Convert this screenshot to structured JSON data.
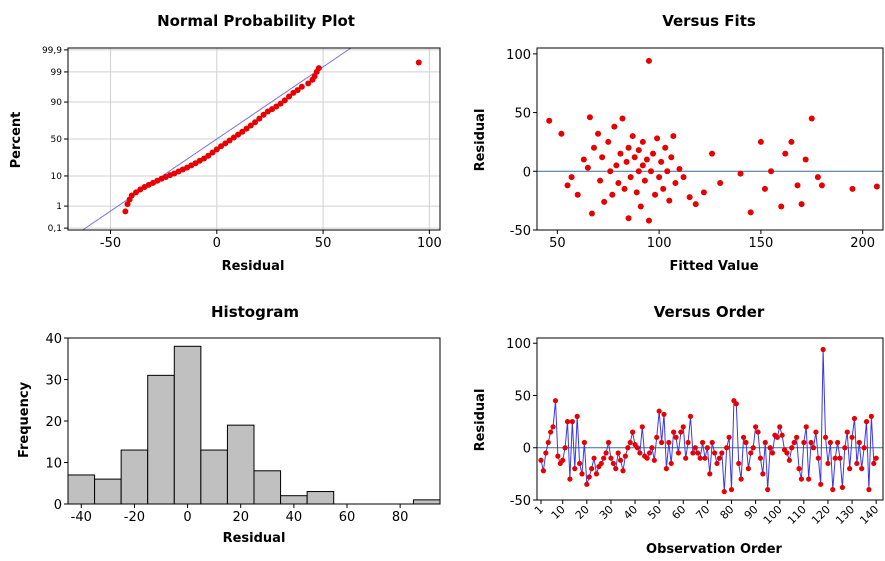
{
  "charts": [
    {
      "id": "npp",
      "title": "Normal Probability Plot",
      "type": "scatter",
      "xlabel": "Residual",
      "ylabel": "Percent",
      "xlim": [
        -70,
        105
      ],
      "xticks": [
        -50,
        0,
        50,
        100
      ],
      "xtick_labels": [
        "-50",
        "0",
        "50",
        "100"
      ],
      "yticks": [
        0.1,
        1,
        10,
        50,
        90,
        99,
        99.9
      ],
      "ytick_labels": [
        "0,1",
        "1",
        "10",
        "50",
        "90",
        "99",
        "99,9"
      ],
      "y_scale": "normal-probability",
      "fit_line": {
        "mean": 0,
        "sd": 20
      },
      "points": [
        [
          -43,
          0.6
        ],
        [
          -42,
          1.2
        ],
        [
          -41,
          1.8
        ],
        [
          -40,
          2.5
        ],
        [
          -38,
          3.2
        ],
        [
          -36,
          4.0
        ],
        [
          -34,
          4.8
        ],
        [
          -32,
          5.6
        ],
        [
          -30,
          6.4
        ],
        [
          -28,
          7.4
        ],
        [
          -26,
          8.4
        ],
        [
          -24,
          9.4
        ],
        [
          -22,
          10.5
        ],
        [
          -20,
          11.6
        ],
        [
          -18,
          13.0
        ],
        [
          -16,
          14.5
        ],
        [
          -14,
          16.0
        ],
        [
          -12,
          18.0
        ],
        [
          -10,
          20.0
        ],
        [
          -8,
          22.5
        ],
        [
          -6,
          25.0
        ],
        [
          -4,
          28.0
        ],
        [
          -2,
          32.0
        ],
        [
          0,
          36.0
        ],
        [
          2,
          40.0
        ],
        [
          4,
          44.0
        ],
        [
          6,
          48.0
        ],
        [
          8,
          52.0
        ],
        [
          10,
          56.0
        ],
        [
          12,
          60.0
        ],
        [
          14,
          64.0
        ],
        [
          16,
          68.0
        ],
        [
          18,
          72.0
        ],
        [
          20,
          76.0
        ],
        [
          22,
          80.0
        ],
        [
          24,
          83.0
        ],
        [
          26,
          85.0
        ],
        [
          28,
          87.0
        ],
        [
          30,
          89.0
        ],
        [
          32,
          91.0
        ],
        [
          34,
          93.0
        ],
        [
          36,
          94.5
        ],
        [
          38,
          95.5
        ],
        [
          40,
          96.5
        ],
        [
          43,
          97.3
        ],
        [
          45,
          98.0
        ],
        [
          46,
          98.5
        ],
        [
          47,
          99.0
        ],
        [
          48,
          99.3
        ],
        [
          95,
          99.6
        ]
      ]
    },
    {
      "id": "fits",
      "title": "Versus Fits",
      "type": "scatter",
      "xlabel": "Fitted Value",
      "ylabel": "Residual",
      "xlim": [
        40,
        210
      ],
      "ylim": [
        -50,
        105
      ],
      "xticks": [
        50,
        100,
        150,
        200
      ],
      "xtick_labels": [
        "50",
        "100",
        "150",
        "200"
      ],
      "yticks": [
        -50,
        0,
        50,
        100
      ],
      "ytick_labels": [
        "-50",
        "0",
        "50",
        "100"
      ],
      "ref_y": 0,
      "points": [
        [
          46,
          43
        ],
        [
          52,
          32
        ],
        [
          55,
          -12
        ],
        [
          57,
          -5
        ],
        [
          60,
          -20
        ],
        [
          63,
          10
        ],
        [
          65,
          3
        ],
        [
          66,
          46
        ],
        [
          67,
          -36
        ],
        [
          68,
          20
        ],
        [
          70,
          32
        ],
        [
          71,
          -8
        ],
        [
          72,
          12
        ],
        [
          73,
          -26
        ],
        [
          75,
          25
        ],
        [
          76,
          0
        ],
        [
          77,
          -20
        ],
        [
          78,
          38
        ],
        [
          79,
          5
        ],
        [
          80,
          -10
        ],
        [
          81,
          15
        ],
        [
          82,
          45
        ],
        [
          83,
          -15
        ],
        [
          84,
          8
        ],
        [
          85,
          20
        ],
        [
          85,
          -40
        ],
        [
          86,
          -5
        ],
        [
          87,
          30
        ],
        [
          88,
          12
        ],
        [
          89,
          -18
        ],
        [
          90,
          0
        ],
        [
          90,
          18
        ],
        [
          91,
          -30
        ],
        [
          92,
          5
        ],
        [
          92,
          25
        ],
        [
          93,
          -8
        ],
        [
          94,
          10
        ],
        [
          95,
          -42
        ],
        [
          95,
          94
        ],
        [
          96,
          0
        ],
        [
          97,
          15
        ],
        [
          98,
          -20
        ],
        [
          99,
          28
        ],
        [
          100,
          -5
        ],
        [
          101,
          8
        ],
        [
          102,
          -15
        ],
        [
          103,
          20
        ],
        [
          104,
          0
        ],
        [
          105,
          -25
        ],
        [
          106,
          12
        ],
        [
          107,
          30
        ],
        [
          108,
          -10
        ],
        [
          110,
          2
        ],
        [
          112,
          -5
        ],
        [
          115,
          -22
        ],
        [
          118,
          -28
        ],
        [
          122,
          -18
        ],
        [
          126,
          15
        ],
        [
          130,
          -10
        ],
        [
          140,
          -2
        ],
        [
          145,
          -35
        ],
        [
          150,
          25
        ],
        [
          152,
          -15
        ],
        [
          155,
          0
        ],
        [
          160,
          -30
        ],
        [
          162,
          15
        ],
        [
          165,
          25
        ],
        [
          168,
          -12
        ],
        [
          170,
          -28
        ],
        [
          172,
          10
        ],
        [
          175,
          45
        ],
        [
          178,
          -5
        ],
        [
          180,
          -12
        ],
        [
          195,
          -15
        ],
        [
          207,
          -13
        ]
      ]
    },
    {
      "id": "hist",
      "title": "Histogram",
      "type": "bar",
      "xlabel": "Residual",
      "ylabel": "Frequency",
      "xlim": [
        -45,
        95
      ],
      "ylim": [
        0,
        40
      ],
      "xticks": [
        -40,
        -20,
        0,
        20,
        40,
        60,
        80
      ],
      "xtick_labels": [
        "-40",
        "-20",
        "0",
        "20",
        "40",
        "60",
        "80"
      ],
      "yticks": [
        0,
        10,
        20,
        30,
        40
      ],
      "ytick_labels": [
        "0",
        "10",
        "20",
        "30",
        "40"
      ],
      "bin_width": 10,
      "bin_centers": [
        -40,
        -30,
        -20,
        -10,
        0,
        10,
        20,
        30,
        40,
        50,
        60,
        70,
        80,
        90
      ],
      "values": [
        7,
        6,
        13,
        31,
        38,
        13,
        19,
        8,
        2,
        3,
        0,
        0,
        0,
        1
      ]
    },
    {
      "id": "order",
      "title": "Versus Order",
      "type": "line",
      "xlabel": "Observation Order",
      "ylabel": "Residual",
      "xlim": [
        1,
        142
      ],
      "ylim": [
        -50,
        105
      ],
      "xticks": [
        1,
        10,
        20,
        30,
        40,
        50,
        60,
        70,
        80,
        90,
        100,
        110,
        120,
        130,
        140
      ],
      "xtick_labels": [
        "1",
        "10",
        "20",
        "30",
        "40",
        "50",
        "60",
        "70",
        "80",
        "90",
        "100",
        "110",
        "120",
        "130",
        "140"
      ],
      "yticks": [
        -50,
        0,
        50,
        100
      ],
      "ytick_labels": [
        "-50",
        "0",
        "50",
        "100"
      ],
      "ref_y": 0,
      "values": [
        -12,
        -22,
        -5,
        5,
        15,
        20,
        45,
        -8,
        -15,
        -12,
        0,
        25,
        -30,
        25,
        -20,
        30,
        -15,
        -25,
        5,
        -35,
        -28,
        -20,
        -10,
        -25,
        -18,
        -15,
        -10,
        -5,
        5,
        -10,
        -15,
        -20,
        -5,
        -12,
        -22,
        -8,
        0,
        5,
        15,
        3,
        0,
        -5,
        20,
        -8,
        -10,
        -5,
        0,
        -12,
        10,
        35,
        5,
        32,
        -20,
        5,
        -15,
        15,
        10,
        -5,
        15,
        20,
        -10,
        5,
        30,
        -5,
        0,
        -5,
        -10,
        5,
        -10,
        0,
        -25,
        5,
        -5,
        -15,
        -10,
        -5,
        -42,
        0,
        10,
        -40,
        45,
        42,
        -15,
        -30,
        10,
        5,
        -20,
        -5,
        0,
        20,
        15,
        -10,
        -25,
        5,
        -40,
        0,
        -5,
        12,
        10,
        20,
        12,
        -2,
        -5,
        -12,
        0,
        5,
        10,
        -20,
        -30,
        5,
        20,
        -30,
        5,
        0,
        15,
        -10,
        -35,
        94,
        10,
        -15,
        5,
        -40,
        -10,
        5,
        -10,
        -38,
        0,
        15,
        -20,
        10,
        28,
        -15,
        5,
        -20,
        0,
        25,
        -40,
        30,
        -15,
        -10
      ]
    }
  ],
  "colors": {
    "point": "#e60000",
    "fit_line": "#7777dd",
    "ref_line": "#3a6a9a",
    "grid": "#d0d0d0",
    "bar_fill": "#c0c0c0",
    "order_line": "#3a3ae0"
  }
}
